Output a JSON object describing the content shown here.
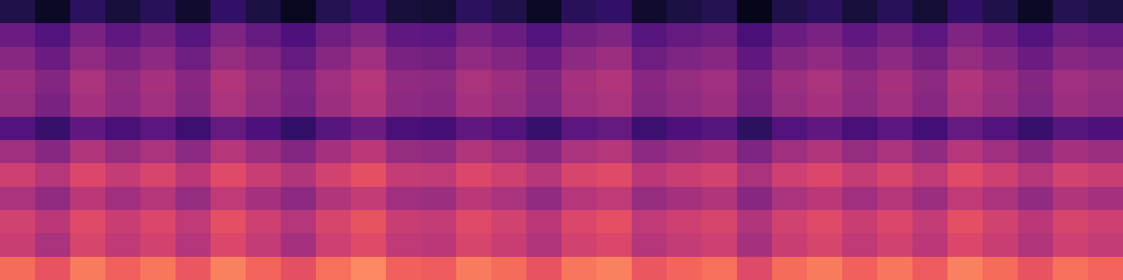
{
  "chart_data": {
    "type": "heatmap",
    "color": "magma",
    "tick_labels": false,
    "cells": [
      [
        20,
        15,
        23,
        18,
        22,
        16,
        24,
        19,
        14,
        21,
        25,
        18,
        17,
        23,
        20,
        15,
        22,
        24,
        16,
        19,
        21,
        13,
        20,
        23,
        18,
        22,
        17,
        24,
        20,
        15,
        21,
        19
      ],
      [
        35,
        30,
        38,
        33,
        37,
        31,
        39,
        34,
        29,
        36,
        40,
        33,
        32,
        38,
        35,
        30,
        37,
        39,
        31,
        34,
        36,
        28,
        35,
        38,
        33,
        37,
        32,
        39,
        35,
        30,
        36,
        34
      ],
      [
        41,
        35,
        43,
        38,
        42,
        36,
        44,
        40,
        34,
        41,
        46,
        38,
        37,
        43,
        40,
        35,
        42,
        45,
        36,
        39,
        41,
        33,
        40,
        43,
        38,
        42,
        37,
        44,
        40,
        35,
        41,
        39
      ],
      [
        45,
        40,
        48,
        43,
        47,
        41,
        49,
        44,
        39,
        46,
        50,
        43,
        42,
        48,
        45,
        40,
        47,
        49,
        41,
        44,
        46,
        38,
        45,
        48,
        43,
        47,
        42,
        49,
        45,
        40,
        46,
        44
      ],
      [
        44,
        38,
        47,
        42,
        46,
        40,
        48,
        43,
        38,
        45,
        49,
        42,
        41,
        47,
        44,
        39,
        46,
        48,
        40,
        43,
        45,
        37,
        44,
        47,
        42,
        46,
        41,
        48,
        44,
        39,
        45,
        43
      ],
      [
        30,
        25,
        33,
        28,
        32,
        26,
        34,
        29,
        24,
        31,
        35,
        28,
        27,
        33,
        30,
        25,
        32,
        34,
        26,
        29,
        31,
        23,
        30,
        33,
        28,
        32,
        27,
        34,
        30,
        25,
        31,
        29
      ],
      [
        46,
        41,
        49,
        44,
        48,
        42,
        50,
        45,
        40,
        47,
        51,
        44,
        43,
        49,
        46,
        41,
        48,
        50,
        42,
        45,
        47,
        39,
        46,
        49,
        44,
        48,
        43,
        50,
        46,
        41,
        47,
        45
      ],
      [
        55,
        50,
        58,
        53,
        57,
        51,
        59,
        54,
        49,
        56,
        60,
        53,
        52,
        58,
        55,
        50,
        57,
        59,
        51,
        54,
        56,
        48,
        55,
        58,
        53,
        57,
        52,
        59,
        55,
        50,
        56,
        54
      ],
      [
        48,
        43,
        51,
        46,
        50,
        44,
        52,
        47,
        42,
        49,
        53,
        46,
        45,
        51,
        48,
        43,
        50,
        52,
        44,
        47,
        49,
        41,
        48,
        51,
        46,
        50,
        45,
        52,
        48,
        43,
        49,
        47
      ],
      [
        56,
        51,
        59,
        54,
        58,
        52,
        60,
        55,
        50,
        57,
        61,
        54,
        53,
        59,
        56,
        51,
        58,
        60,
        52,
        55,
        57,
        49,
        56,
        59,
        54,
        58,
        53,
        60,
        56,
        51,
        57,
        55
      ],
      [
        54,
        48,
        57,
        52,
        56,
        50,
        58,
        53,
        47,
        55,
        59,
        52,
        51,
        57,
        54,
        49,
        56,
        58,
        50,
        53,
        55,
        47,
        54,
        57,
        52,
        56,
        51,
        58,
        54,
        49,
        55,
        53
      ],
      [
        66,
        61,
        69,
        64,
        68,
        62,
        70,
        65,
        60,
        67,
        71,
        64,
        63,
        69,
        66,
        61,
        68,
        70,
        62,
        65,
        67,
        59,
        66,
        69,
        64,
        68,
        63,
        70,
        66,
        61,
        67,
        65
      ]
    ]
  }
}
